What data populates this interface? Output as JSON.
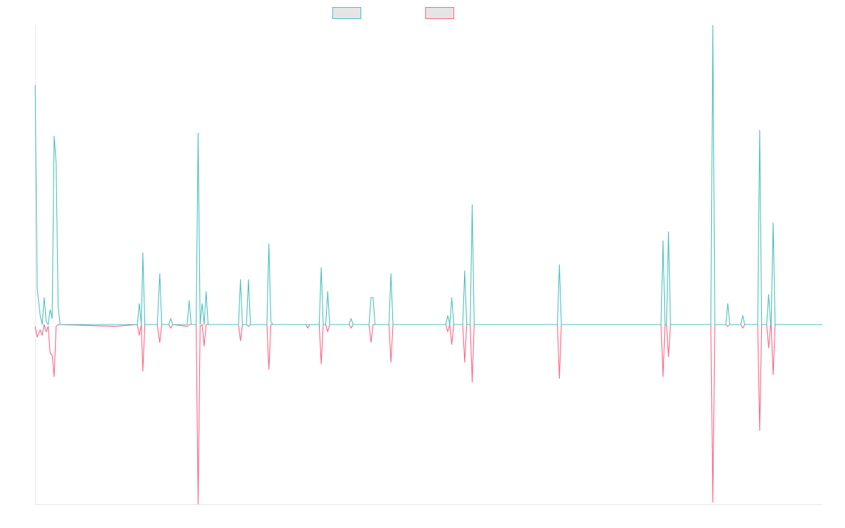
{
  "chart_data": {
    "type": "line",
    "title": "",
    "xlabel": "",
    "ylabel": "",
    "legend_position": "top-center",
    "grid": false,
    "ylim": [
      -1.0,
      1.0
    ],
    "xlim": [
      0,
      158
    ],
    "series": [
      {
        "color": "#4BC0C0",
        "fill": "#E5E5E5",
        "points": [
          [
            0,
            0.8
          ],
          [
            0.4,
            0.12
          ],
          [
            1,
            0.03
          ],
          [
            1.4,
            0.0
          ],
          [
            1.8,
            0.09
          ],
          [
            2.2,
            0.01
          ],
          [
            2.6,
            0.0
          ],
          [
            3.0,
            0.05
          ],
          [
            3.4,
            0.02
          ],
          [
            3.8,
            0.63
          ],
          [
            4.2,
            0.54
          ],
          [
            4.6,
            0.06
          ],
          [
            5.0,
            0.0
          ],
          [
            16,
            0.0
          ],
          [
            20.5,
            0.0
          ],
          [
            20.9,
            0.07
          ],
          [
            21.3,
            0.0
          ],
          [
            21.6,
            0.24
          ],
          [
            22.0,
            0.0
          ],
          [
            24.5,
            0.0
          ],
          [
            25.0,
            0.17
          ],
          [
            25.4,
            0.0
          ],
          [
            26.8,
            0.0
          ],
          [
            27.2,
            0.02
          ],
          [
            27.6,
            0.0
          ],
          [
            30.5,
            0.0
          ],
          [
            30.9,
            0.08
          ],
          [
            31.3,
            0.0
          ],
          [
            32.3,
            0.0
          ],
          [
            32.7,
            0.64
          ],
          [
            33.1,
            0.0
          ],
          [
            33.5,
            0.07
          ],
          [
            33.9,
            0.0
          ],
          [
            34.3,
            0.11
          ],
          [
            34.7,
            0.0
          ],
          [
            38.2,
            0.0
          ],
          [
            40.8,
            0.0
          ],
          [
            41.2,
            0.15
          ],
          [
            41.6,
            0.0
          ],
          [
            42.4,
            0.0
          ],
          [
            42.8,
            0.15
          ],
          [
            43.2,
            0.0
          ],
          [
            46.5,
            0.0
          ],
          [
            46.9,
            0.27
          ],
          [
            47.3,
            0.01
          ],
          [
            47.7,
            0.0
          ],
          [
            57.0,
            0.0
          ],
          [
            57.4,
            0.19
          ],
          [
            57.8,
            0.0
          ],
          [
            58.3,
            0.0
          ],
          [
            58.7,
            0.11
          ],
          [
            59.1,
            0.0
          ],
          [
            63.0,
            0.0
          ],
          [
            63.4,
            0.02
          ],
          [
            63.8,
            0.0
          ],
          [
            67.0,
            0.0
          ],
          [
            67.4,
            0.09
          ],
          [
            67.8,
            0.09
          ],
          [
            68.2,
            0.0
          ],
          [
            71.0,
            0.0
          ],
          [
            71.4,
            0.17
          ],
          [
            71.8,
            0.0
          ],
          [
            82.4,
            0.0
          ],
          [
            82.8,
            0.03
          ],
          [
            83.2,
            0.0
          ],
          [
            83.6,
            0.09
          ],
          [
            84.0,
            0.0
          ],
          [
            85.8,
            0.0
          ],
          [
            86.2,
            0.18
          ],
          [
            86.6,
            0.0
          ],
          [
            87.3,
            0.0
          ],
          [
            87.7,
            0.4
          ],
          [
            88.1,
            0.0
          ],
          [
            104.8,
            0.0
          ],
          [
            105.2,
            0.2
          ],
          [
            105.6,
            0.0
          ],
          [
            125.6,
            0.0
          ],
          [
            126.0,
            0.28
          ],
          [
            126.4,
            0.0
          ],
          [
            126.7,
            0.0
          ],
          [
            127.1,
            0.31
          ],
          [
            127.5,
            0.0
          ],
          [
            135.6,
            0.0
          ],
          [
            136.0,
            1.0
          ],
          [
            136.4,
            0.0
          ],
          [
            138.6,
            0.0
          ],
          [
            139.0,
            0.07
          ],
          [
            139.4,
            0.0
          ],
          [
            141.6,
            0.0
          ],
          [
            142.0,
            0.03
          ],
          [
            142.4,
            0.0
          ],
          [
            145.0,
            0.0
          ],
          [
            145.4,
            0.65
          ],
          [
            145.8,
            0.0
          ],
          [
            146.8,
            0.0
          ],
          [
            147.2,
            0.1
          ],
          [
            147.6,
            0.0
          ],
          [
            147.7,
            0.0
          ],
          [
            148.1,
            0.34
          ],
          [
            148.5,
            0.0
          ],
          [
            158,
            0.0
          ]
        ]
      },
      {
        "color": "#FF6384",
        "fill": "#E5E5E5",
        "points": [
          [
            0,
            -0.01
          ],
          [
            0.4,
            -0.07
          ],
          [
            1,
            -0.03
          ],
          [
            1.4,
            -0.06
          ],
          [
            1.8,
            0.0
          ],
          [
            2.2,
            -0.04
          ],
          [
            2.6,
            -0.01
          ],
          [
            3.0,
            -0.16
          ],
          [
            3.4,
            -0.17
          ],
          [
            3.8,
            -0.29
          ],
          [
            4.2,
            -0.01
          ],
          [
            4.6,
            0.0
          ],
          [
            16,
            -0.01
          ],
          [
            20.5,
            0.0
          ],
          [
            20.9,
            -0.06
          ],
          [
            21.3,
            0.0
          ],
          [
            21.6,
            -0.26
          ],
          [
            22.0,
            0.0
          ],
          [
            24.5,
            0.0
          ],
          [
            25.0,
            -0.1
          ],
          [
            25.4,
            0.0
          ],
          [
            26.8,
            0.0
          ],
          [
            27.2,
            -0.02
          ],
          [
            27.6,
            0.0
          ],
          [
            30.5,
            -0.01
          ],
          [
            30.9,
            0.0
          ],
          [
            32.3,
            0.0
          ],
          [
            32.7,
            -1.0
          ],
          [
            33.1,
            -0.01
          ],
          [
            33.5,
            0.0
          ],
          [
            33.9,
            -0.12
          ],
          [
            34.3,
            0.0
          ],
          [
            38.2,
            0.0
          ],
          [
            40.8,
            0.0
          ],
          [
            41.2,
            -0.09
          ],
          [
            41.6,
            0.0
          ],
          [
            42.4,
            0.0
          ],
          [
            42.8,
            -0.01
          ],
          [
            43.2,
            0.0
          ],
          [
            46.5,
            0.0
          ],
          [
            46.9,
            -0.25
          ],
          [
            47.3,
            0.0
          ],
          [
            54.3,
            0.0
          ],
          [
            54.7,
            -0.02
          ],
          [
            55.1,
            0.0
          ],
          [
            57.0,
            0.0
          ],
          [
            57.4,
            -0.22
          ],
          [
            57.8,
            0.0
          ],
          [
            58.3,
            0.0
          ],
          [
            58.7,
            -0.04
          ],
          [
            59.1,
            0.0
          ],
          [
            63.0,
            0.0
          ],
          [
            63.4,
            -0.02
          ],
          [
            63.8,
            0.0
          ],
          [
            67.0,
            0.0
          ],
          [
            67.4,
            -0.1
          ],
          [
            67.8,
            0.0
          ],
          [
            71.0,
            0.0
          ],
          [
            71.4,
            -0.21
          ],
          [
            71.8,
            0.0
          ],
          [
            82.4,
            0.0
          ],
          [
            82.8,
            -0.04
          ],
          [
            83.2,
            0.0
          ],
          [
            83.6,
            -0.11
          ],
          [
            84.0,
            0.0
          ],
          [
            85.8,
            0.0
          ],
          [
            86.2,
            -0.21
          ],
          [
            86.6,
            0.0
          ],
          [
            87.3,
            0.0
          ],
          [
            87.7,
            -0.32
          ],
          [
            88.1,
            0.0
          ],
          [
            104.8,
            0.0
          ],
          [
            105.2,
            -0.3
          ],
          [
            105.6,
            0.0
          ],
          [
            125.6,
            0.0
          ],
          [
            126.0,
            -0.29
          ],
          [
            126.4,
            0.0
          ],
          [
            126.7,
            0.0
          ],
          [
            127.1,
            -0.18
          ],
          [
            127.5,
            0.0
          ],
          [
            135.6,
            0.0
          ],
          [
            136.0,
            -0.99
          ],
          [
            136.4,
            0.0
          ],
          [
            138.6,
            0.0
          ],
          [
            139.0,
            -0.01
          ],
          [
            139.4,
            0.0
          ],
          [
            141.6,
            0.0
          ],
          [
            142.0,
            -0.02
          ],
          [
            142.4,
            0.0
          ],
          [
            145.0,
            0.0
          ],
          [
            145.4,
            -0.59
          ],
          [
            145.8,
            0.0
          ],
          [
            146.8,
            0.0
          ],
          [
            147.2,
            -0.13
          ],
          [
            147.6,
            0.0
          ],
          [
            147.7,
            0.0
          ],
          [
            148.1,
            -0.28
          ],
          [
            148.5,
            0.0
          ],
          [
            158,
            0.0
          ]
        ]
      }
    ]
  }
}
